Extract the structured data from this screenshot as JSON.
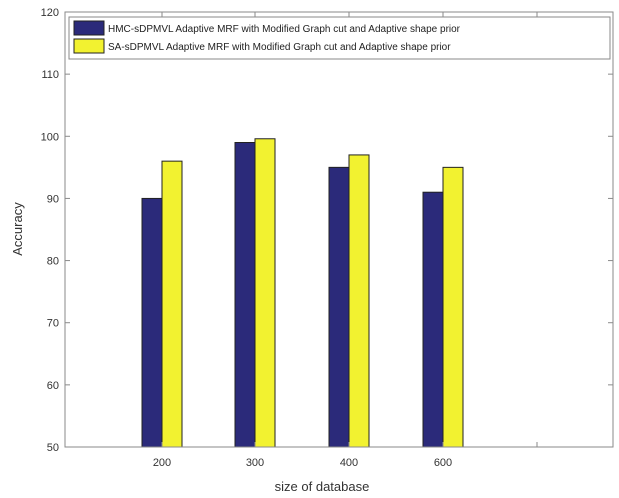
{
  "chart_data": {
    "type": "bar",
    "categories": [
      "200",
      "300",
      "400",
      "600"
    ],
    "series": [
      {
        "name": "HMC-sDPMVL Adaptive MRF with Modified Graph cut and Adaptive shape prior",
        "values": [
          90,
          99,
          95,
          91
        ],
        "color": "#2b2a7a"
      },
      {
        "name": "SA-sDPMVL Adaptive MRF with Modified Graph cut and Adaptive shape prior",
        "values": [
          96,
          99.6,
          97,
          95
        ],
        "color": "#f2f230"
      }
    ],
    "title": "",
    "xlabel": "size of database",
    "ylabel": "Accuracy",
    "ylim": [
      50,
      120
    ],
    "yticks": [
      "50",
      "60",
      "70",
      "80",
      "90",
      "100",
      "110",
      "120"
    ],
    "grid": false,
    "legend_position": "top-left"
  }
}
